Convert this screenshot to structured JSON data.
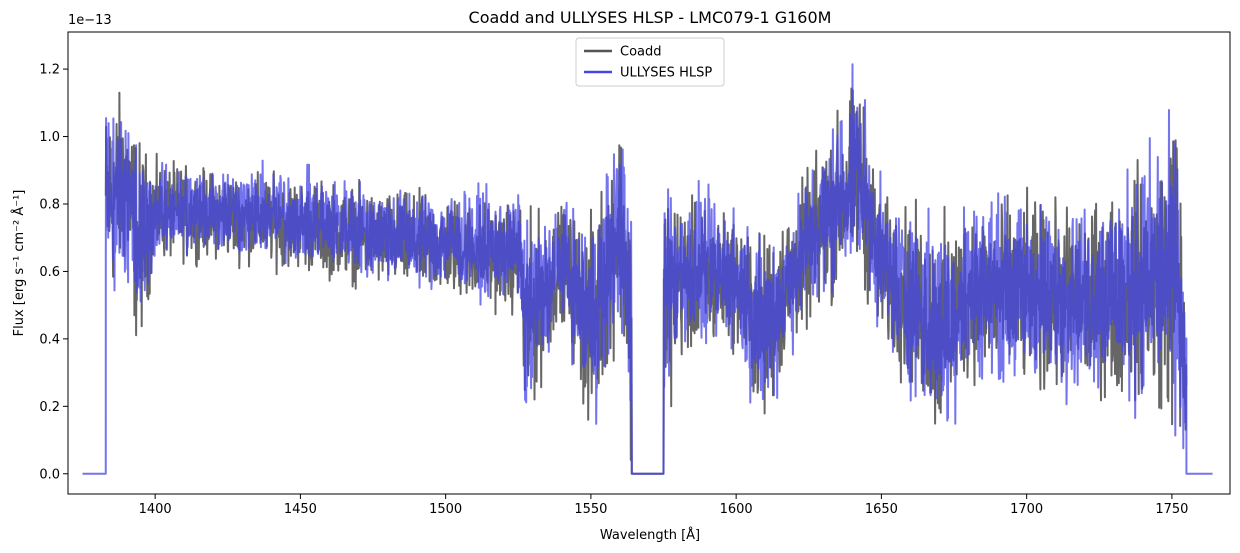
{
  "chart_data": {
    "type": "line",
    "title": "Coadd and ULLYSES HLSP - LMC079-1 G160M",
    "xlabel": "Wavelength [Å]",
    "ylabel": "Flux [erg s⁻¹ cm⁻² Å⁻¹]",
    "y_scale_label": "1e−13",
    "xlim": [
      1370,
      1770
    ],
    "ylim": [
      -0.06,
      1.31
    ],
    "x_ticks": [
      1400,
      1450,
      1500,
      1550,
      1600,
      1650,
      1700,
      1750
    ],
    "y_ticks": [
      0.0,
      0.2,
      0.4,
      0.6,
      0.8,
      1.0,
      1.2
    ],
    "y_tick_labels": [
      "0.0",
      "0.2",
      "0.4",
      "0.6",
      "0.8",
      "1.0",
      "1.2"
    ],
    "grid": false,
    "legend_position": "top-center",
    "series": [
      {
        "name": "Coadd",
        "color": "#555555",
        "x_range": [
          1383,
          1755
        ],
        "gap": [
          1564,
          1575
        ],
        "envelope_points": [
          [
            1383,
            0.45,
            1.15
          ],
          [
            1390,
            0.55,
            1.19
          ],
          [
            1394,
            0.3,
            1.05
          ],
          [
            1400,
            0.6,
            0.95
          ],
          [
            1420,
            0.62,
            0.92
          ],
          [
            1450,
            0.58,
            0.9
          ],
          [
            1480,
            0.52,
            0.86
          ],
          [
            1500,
            0.5,
            0.85
          ],
          [
            1526,
            0.45,
            0.82
          ],
          [
            1527,
            0.04,
            0.8
          ],
          [
            1540,
            0.45,
            0.82
          ],
          [
            1550,
            0.05,
            0.8
          ],
          [
            1560,
            0.4,
            1.11
          ],
          [
            1564,
            0.0,
            0.85
          ],
          [
            1576,
            0.0,
            1.0
          ],
          [
            1580,
            0.3,
            0.85
          ],
          [
            1600,
            0.35,
            0.8
          ],
          [
            1609,
            0.08,
            0.75
          ],
          [
            1620,
            0.35,
            0.85
          ],
          [
            1642,
            0.55,
            1.23
          ],
          [
            1650,
            0.35,
            0.85
          ],
          [
            1671,
            0.03,
            0.8
          ],
          [
            1680,
            0.25,
            0.85
          ],
          [
            1700,
            0.2,
            0.85
          ],
          [
            1720,
            0.2,
            0.82
          ],
          [
            1745,
            0.15,
            1.0
          ],
          [
            1752,
            0.0,
            1.22
          ],
          [
            1755,
            0.0,
            0.5
          ]
        ]
      },
      {
        "name": "ULLYSES HLSP",
        "color": "#4646e6",
        "x_range": [
          1375,
          1764
        ],
        "gap": [
          1564,
          1575
        ],
        "envelope_points": [
          [
            1383,
            0.5,
            1.12
          ],
          [
            1390,
            0.55,
            1.16
          ],
          [
            1394,
            0.31,
            1.03
          ],
          [
            1400,
            0.62,
            0.93
          ],
          [
            1420,
            0.63,
            0.95
          ],
          [
            1450,
            0.6,
            0.92
          ],
          [
            1480,
            0.55,
            0.88
          ],
          [
            1500,
            0.52,
            0.87
          ],
          [
            1526,
            0.48,
            0.85
          ],
          [
            1527,
            0.05,
            0.8
          ],
          [
            1540,
            0.47,
            0.82
          ],
          [
            1550,
            0.06,
            0.82
          ],
          [
            1560,
            0.42,
            1.1
          ],
          [
            1564,
            0.0,
            0.82
          ],
          [
            1574,
            0.0,
            1.09
          ],
          [
            1580,
            0.32,
            0.9
          ],
          [
            1600,
            0.35,
            0.82
          ],
          [
            1609,
            0.08,
            0.76
          ],
          [
            1620,
            0.36,
            0.85
          ],
          [
            1642,
            0.58,
            1.25
          ],
          [
            1650,
            0.38,
            0.88
          ],
          [
            1671,
            0.03,
            0.8
          ],
          [
            1680,
            0.25,
            0.87
          ],
          [
            1700,
            0.22,
            0.85
          ],
          [
            1720,
            0.2,
            0.84
          ],
          [
            1745,
            0.15,
            1.05
          ],
          [
            1752,
            0.0,
            1.1
          ],
          [
            1755,
            0.0,
            0.5
          ]
        ]
      }
    ]
  }
}
